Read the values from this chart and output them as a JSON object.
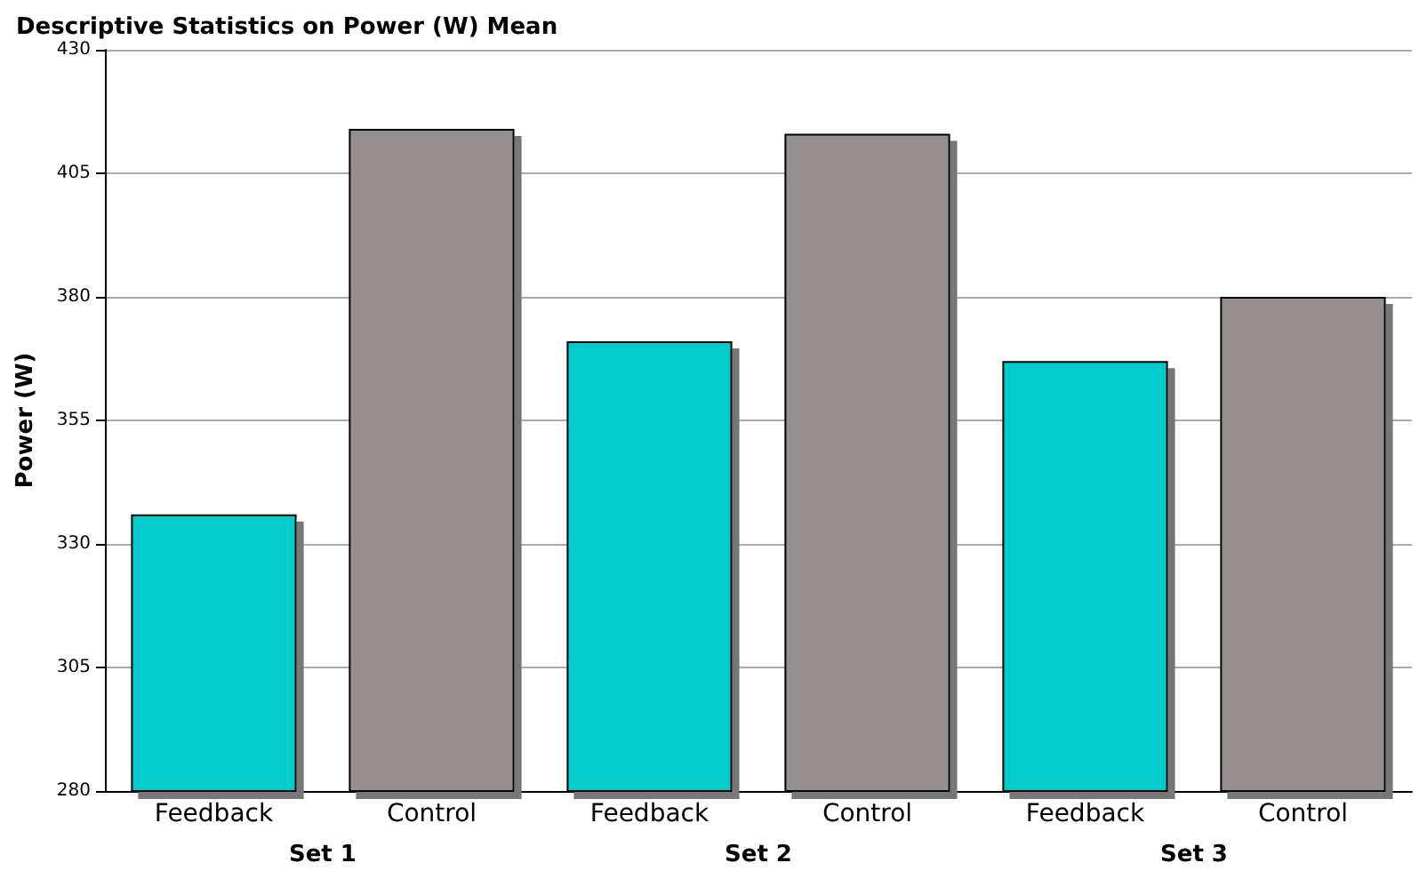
{
  "chart_data": {
    "type": "bar",
    "title": "Descriptive Statistics on Power (W) Mean",
    "ylabel": "Power (W)",
    "categories": [
      "Set 1",
      "Set 2",
      "Set 3"
    ],
    "series": [
      {
        "name": "Feedback",
        "color": "#00cccc",
        "values": [
          336,
          371,
          367
        ]
      },
      {
        "name": "Control",
        "color": "#968f8f",
        "values": [
          414,
          413,
          380
        ]
      }
    ],
    "ylim": [
      280,
      430
    ],
    "yticks": [
      280,
      305,
      330,
      355,
      380,
      405,
      430
    ],
    "grid": "y"
  }
}
